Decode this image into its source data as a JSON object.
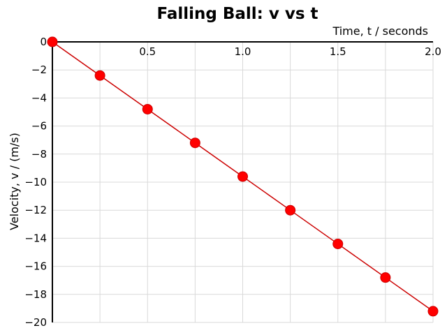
{
  "chart_data": {
    "type": "line",
    "title": "Falling Ball: v vs t",
    "xlabel": "Time, t / seconds",
    "ylabel": "Velocity, v / (m/s)",
    "xlim": [
      0,
      2.0
    ],
    "ylim": [
      -20,
      0
    ],
    "x_ticks": [
      "0.5",
      "1.0",
      "1.5",
      "2.0"
    ],
    "x_tick_values": [
      0.5,
      1.0,
      1.5,
      2.0
    ],
    "y_ticks": [
      "0",
      "−2",
      "−4",
      "−6",
      "−8",
      "−10",
      "−12",
      "−14",
      "−16",
      "−18",
      "−20"
    ],
    "y_tick_values": [
      0,
      -2,
      -4,
      -6,
      -8,
      -10,
      -12,
      -14,
      -16,
      -18,
      -20
    ],
    "grid": true,
    "series": [
      {
        "x": [
          0,
          0.25,
          0.5,
          0.75,
          1.0,
          1.25,
          1.5,
          1.75,
          2.0
        ],
        "y": [
          0,
          -2.4,
          -4.8,
          -7.2,
          -9.6,
          -12.0,
          -14.4,
          -16.8,
          -19.2
        ],
        "color": "#ff0000",
        "line_color": "#cc0000",
        "marker": "circle"
      }
    ]
  }
}
